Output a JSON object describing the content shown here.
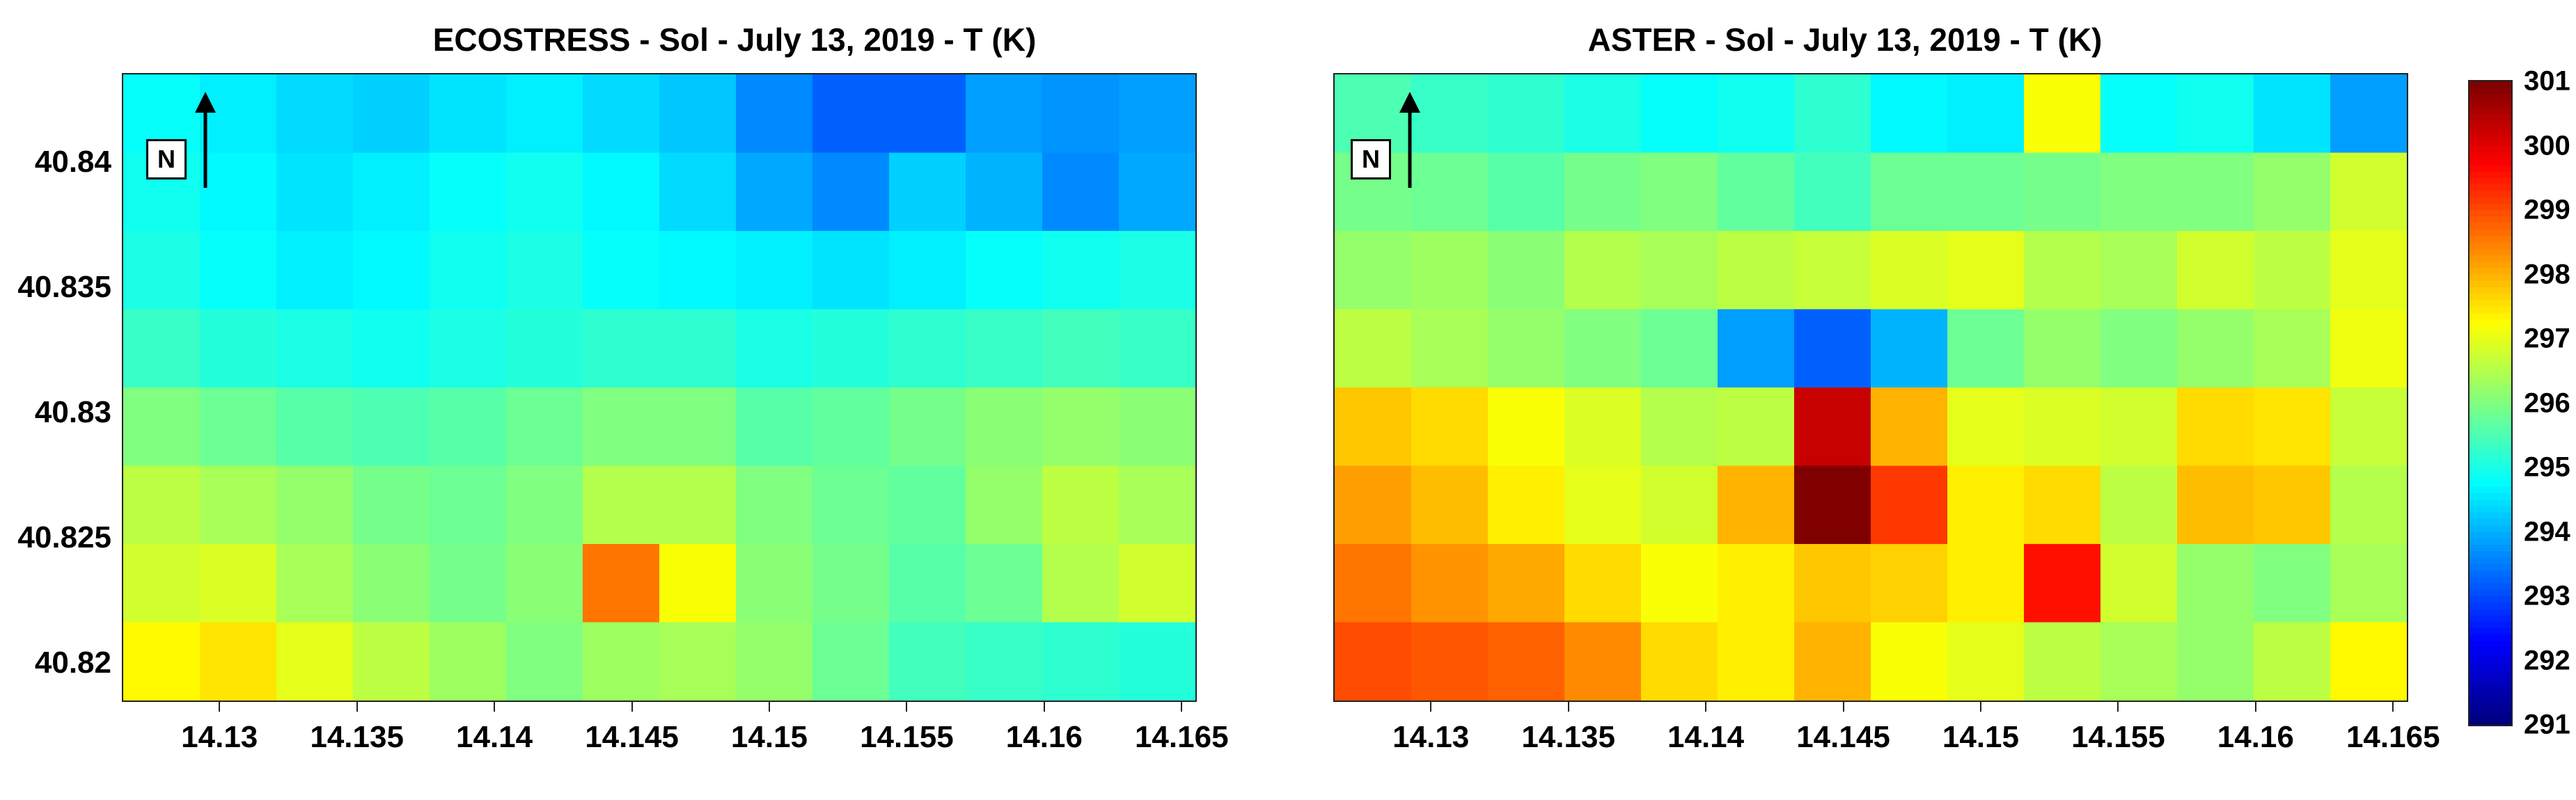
{
  "chart_data": [
    {
      "type": "heatmap",
      "title": "ECOSTRESS - Sol - July 13, 2019 - T (K)",
      "xlabel": "",
      "ylabel": "",
      "xlim": [
        14.1265,
        14.1655
      ],
      "ylim": [
        40.8185,
        40.8435
      ],
      "xticks": [
        "14.13",
        "14.135",
        "14.14",
        "14.145",
        "14.15",
        "14.155",
        "14.16",
        "14.165"
      ],
      "yticks": [
        "40.84",
        "40.835",
        "40.83",
        "40.825",
        "40.82"
      ],
      "north_label": "N",
      "grid_cols": 14,
      "grid_rows": 8,
      "values": [
        [
          294.8,
          294.6,
          294.4,
          294.3,
          294.5,
          294.6,
          294.4,
          294.2,
          293.6,
          293.2,
          293.2,
          293.8,
          293.7,
          293.8
        ],
        [
          294.9,
          294.7,
          294.5,
          294.6,
          294.8,
          294.9,
          294.7,
          294.4,
          293.9,
          293.6,
          294.3,
          294.0,
          293.6,
          293.9
        ],
        [
          295.0,
          294.8,
          294.6,
          294.7,
          294.9,
          295.0,
          294.8,
          294.7,
          294.6,
          294.5,
          294.6,
          294.8,
          294.9,
          295.0
        ],
        [
          295.3,
          295.1,
          295.0,
          294.9,
          295.0,
          295.1,
          295.2,
          295.2,
          295.0,
          295.1,
          295.2,
          295.3,
          295.4,
          295.3
        ],
        [
          296.0,
          295.8,
          295.6,
          295.5,
          295.6,
          295.8,
          296.0,
          296.0,
          295.6,
          295.7,
          295.9,
          296.1,
          296.2,
          296.1
        ],
        [
          296.6,
          296.4,
          296.2,
          295.9,
          295.8,
          296.0,
          296.5,
          296.5,
          296.0,
          295.8,
          295.7,
          296.2,
          296.6,
          296.4
        ],
        [
          296.8,
          296.9,
          296.4,
          296.1,
          295.9,
          296.1,
          298.6,
          297.2,
          296.1,
          295.9,
          295.6,
          295.8,
          296.5,
          296.8
        ],
        [
          297.3,
          297.5,
          297.0,
          296.6,
          296.3,
          296.0,
          296.3,
          296.4,
          296.2,
          295.8,
          295.4,
          295.3,
          295.2,
          295.1
        ]
      ]
    },
    {
      "type": "heatmap",
      "title": "ASTER - Sol - July 13, 2019 - T (K)",
      "xlabel": "",
      "ylabel": "",
      "xlim": [
        14.1265,
        14.1655
      ],
      "ylim": [
        40.8185,
        40.8435
      ],
      "xticks": [
        "14.13",
        "14.135",
        "14.14",
        "14.145",
        "14.15",
        "14.155",
        "14.16",
        "14.165"
      ],
      "yticks": [],
      "north_label": "N",
      "grid_cols": 14,
      "grid_rows": 8,
      "values": [
        [
          295.5,
          295.3,
          295.2,
          295.0,
          294.8,
          294.9,
          295.2,
          294.7,
          294.6,
          297.2,
          294.8,
          294.9,
          294.5,
          293.8
        ],
        [
          295.9,
          295.8,
          295.6,
          295.9,
          296.0,
          295.7,
          295.4,
          295.8,
          295.8,
          295.9,
          296.0,
          296.0,
          296.2,
          296.8
        ],
        [
          296.2,
          296.3,
          296.1,
          296.5,
          296.4,
          296.6,
          296.7,
          296.9,
          297.0,
          296.5,
          296.4,
          296.8,
          296.6,
          297.0
        ],
        [
          296.6,
          296.4,
          296.2,
          296.0,
          295.8,
          293.8,
          293.2,
          294.0,
          295.8,
          296.2,
          296.0,
          296.2,
          296.4,
          297.1
        ],
        [
          297.8,
          297.6,
          297.2,
          296.9,
          296.5,
          296.6,
          300.3,
          298.0,
          297.0,
          296.9,
          296.8,
          297.6,
          297.5,
          296.7
        ],
        [
          298.2,
          297.9,
          297.4,
          297.0,
          296.8,
          298.0,
          301.0,
          299.2,
          297.4,
          297.6,
          296.6,
          297.9,
          297.8,
          296.5
        ],
        [
          298.6,
          298.3,
          298.1,
          297.6,
          297.2,
          297.4,
          297.8,
          297.7,
          297.4,
          299.6,
          296.8,
          296.2,
          296.0,
          296.4
        ],
        [
          299.0,
          298.9,
          298.8,
          298.4,
          297.6,
          297.4,
          298.0,
          297.2,
          297.0,
          296.6,
          296.4,
          296.2,
          296.6,
          297.3
        ]
      ]
    }
  ],
  "colorbar": {
    "min": 291,
    "max": 301,
    "ticks": [
      "301",
      "300",
      "299",
      "298",
      "297",
      "296",
      "295",
      "294",
      "293",
      "292",
      "291"
    ]
  }
}
